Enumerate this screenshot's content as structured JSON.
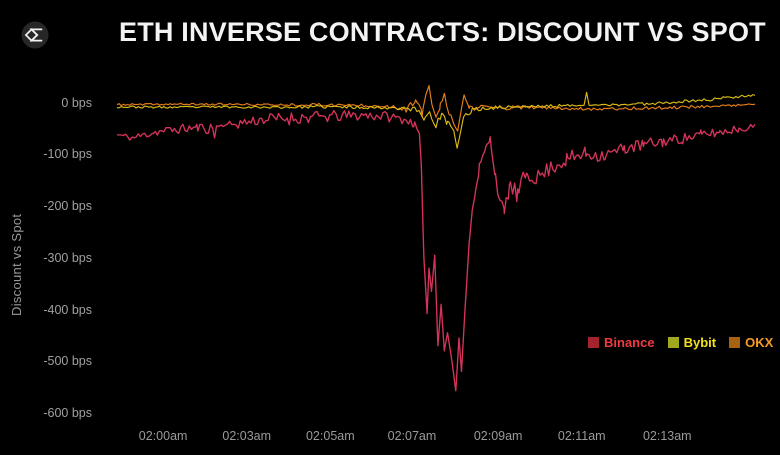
{
  "header": {
    "title": "ETH INVERSE CONTRACTS: DISCOUNT VS SPOT"
  },
  "colors": {
    "background": "#000000",
    "title": "#f4f4f4",
    "axis_text": "#9a9a9a",
    "binance": "#d6335a",
    "bybit": "#d9ba14",
    "okx": "#e67f18"
  },
  "chart_data": {
    "type": "line",
    "title": "ETH INVERSE CONTRACTS: DISCOUNT VS SPOT",
    "ylabel": "Discount vs Spot",
    "y_unit": "bps",
    "ylim": [
      40,
      -615
    ],
    "grid": false,
    "legend_position": "right-middle",
    "y_ticks": [
      {
        "label": "0 bps",
        "value": 0
      },
      {
        "label": "-100 bps",
        "value": -100
      },
      {
        "label": "-200 bps",
        "value": -200
      },
      {
        "label": "-300 bps",
        "value": -300
      },
      {
        "label": "-400 bps",
        "value": -400
      },
      {
        "label": "-500 bps",
        "value": -500
      },
      {
        "label": "-600 bps",
        "value": -600
      }
    ],
    "x_ticks": [
      {
        "label": "02:00am",
        "pos": 0.082
      },
      {
        "label": "02:03am",
        "pos": 0.211
      },
      {
        "label": "02:05am",
        "pos": 0.34
      },
      {
        "label": "02:07am",
        "pos": 0.466
      },
      {
        "label": "02:09am",
        "pos": 0.599
      },
      {
        "label": "02:11am",
        "pos": 0.728
      },
      {
        "label": "02:13am",
        "pos": 0.86
      }
    ],
    "legend": [
      {
        "label": "Binance",
        "text_color": "#f03c40",
        "swatch_color": "#a3242f"
      },
      {
        "label": "Bybit",
        "text_color": "#f2e01d",
        "swatch_color": "#a0a81e"
      },
      {
        "label": "OKX",
        "text_color": "#f79a23",
        "swatch_color": "#a86312"
      }
    ],
    "series_note": "anchors are [fraction_of_time_axis, value_bps, noise_amplitude_bps]; window spans ~01:59am-02:14am; Binance inverse contract crashes to about -557 bps near 02:08am while Bybit dips to ~-88 bps and OKX swings between +33 and -55 bps",
    "series": [
      {
        "name": "Binance",
        "color_key": "binance",
        "seed": 11,
        "width": 1.35,
        "anchors": [
          [
            0.0,
            -62,
            5
          ],
          [
            0.025,
            -68,
            7
          ],
          [
            0.055,
            -58,
            8
          ],
          [
            0.09,
            -52,
            9
          ],
          [
            0.125,
            -48,
            9
          ],
          [
            0.15,
            -50,
            12
          ],
          [
            0.153,
            -68,
            0
          ],
          [
            0.156,
            -45,
            0
          ],
          [
            0.19,
            -40,
            10
          ],
          [
            0.23,
            -32,
            11
          ],
          [
            0.27,
            -30,
            13
          ],
          [
            0.31,
            -28,
            12
          ],
          [
            0.35,
            -26,
            11
          ],
          [
            0.39,
            -24,
            10
          ],
          [
            0.42,
            -26,
            10
          ],
          [
            0.45,
            -32,
            9
          ],
          [
            0.465,
            -40,
            8
          ],
          [
            0.474,
            -60,
            0
          ],
          [
            0.477,
            -120,
            0
          ],
          [
            0.481,
            -300,
            0
          ],
          [
            0.486,
            -408,
            0
          ],
          [
            0.489,
            -320,
            0
          ],
          [
            0.493,
            -365,
            0
          ],
          [
            0.498,
            -295,
            0
          ],
          [
            0.503,
            -470,
            0
          ],
          [
            0.508,
            -390,
            0
          ],
          [
            0.513,
            -480,
            0
          ],
          [
            0.518,
            -445,
            0
          ],
          [
            0.525,
            -500,
            0
          ],
          [
            0.531,
            -557,
            0
          ],
          [
            0.536,
            -455,
            0
          ],
          [
            0.54,
            -520,
            0
          ],
          [
            0.546,
            -390,
            0
          ],
          [
            0.552,
            -270,
            0
          ],
          [
            0.558,
            -195,
            8
          ],
          [
            0.568,
            -125,
            10
          ],
          [
            0.578,
            -90,
            10
          ],
          [
            0.585,
            -70,
            8
          ],
          [
            0.592,
            -130,
            12
          ],
          [
            0.6,
            -190,
            12
          ],
          [
            0.607,
            -215,
            12
          ],
          [
            0.615,
            -160,
            18
          ],
          [
            0.628,
            -180,
            18
          ],
          [
            0.642,
            -135,
            18
          ],
          [
            0.66,
            -145,
            16
          ],
          [
            0.68,
            -125,
            15
          ],
          [
            0.705,
            -110,
            15
          ],
          [
            0.735,
            -98,
            14
          ],
          [
            0.765,
            -102,
            13
          ],
          [
            0.795,
            -88,
            12
          ],
          [
            0.825,
            -82,
            12
          ],
          [
            0.855,
            -75,
            11
          ],
          [
            0.885,
            -70,
            10
          ],
          [
            0.915,
            -62,
            10
          ],
          [
            0.945,
            -57,
            9
          ],
          [
            0.975,
            -50,
            8
          ],
          [
            1.0,
            -46,
            5
          ]
        ]
      },
      {
        "name": "OKX",
        "color_key": "okx",
        "seed": 37,
        "width": 1.15,
        "anchors": [
          [
            0.0,
            -4,
            2
          ],
          [
            0.08,
            -3,
            2
          ],
          [
            0.16,
            -3,
            2
          ],
          [
            0.24,
            -4,
            2
          ],
          [
            0.32,
            -4,
            3
          ],
          [
            0.39,
            -5,
            3
          ],
          [
            0.43,
            -7,
            4
          ],
          [
            0.455,
            -12,
            7
          ],
          [
            0.468,
            2,
            8
          ],
          [
            0.478,
            -22,
            9
          ],
          [
            0.484,
            15,
            0
          ],
          [
            0.489,
            33,
            0
          ],
          [
            0.494,
            -6,
            0
          ],
          [
            0.5,
            -28,
            0
          ],
          [
            0.506,
            -8,
            7
          ],
          [
            0.513,
            12,
            7
          ],
          [
            0.521,
            -18,
            7
          ],
          [
            0.528,
            -42,
            0
          ],
          [
            0.534,
            -55,
            0
          ],
          [
            0.539,
            -18,
            0
          ],
          [
            0.544,
            15,
            0
          ],
          [
            0.552,
            -12,
            6
          ],
          [
            0.568,
            -8,
            5
          ],
          [
            0.6,
            -10,
            4
          ],
          [
            0.65,
            -9,
            3
          ],
          [
            0.7,
            -11,
            3
          ],
          [
            0.75,
            -12,
            3
          ],
          [
            0.8,
            -11,
            3
          ],
          [
            0.85,
            -10,
            3
          ],
          [
            0.9,
            -8,
            3
          ],
          [
            0.95,
            -6,
            2
          ],
          [
            1.0,
            -3,
            2
          ]
        ]
      },
      {
        "name": "Bybit",
        "color_key": "bybit",
        "seed": 23,
        "width": 1.15,
        "anchors": [
          [
            0.0,
            -8,
            2
          ],
          [
            0.08,
            -9,
            2
          ],
          [
            0.16,
            -8,
            2
          ],
          [
            0.24,
            -9,
            2
          ],
          [
            0.32,
            -8,
            3
          ],
          [
            0.4,
            -9,
            3
          ],
          [
            0.45,
            -10,
            4
          ],
          [
            0.47,
            -14,
            6
          ],
          [
            0.481,
            -30,
            8
          ],
          [
            0.49,
            -18,
            8
          ],
          [
            0.5,
            -42,
            9
          ],
          [
            0.509,
            -24,
            8
          ],
          [
            0.518,
            -38,
            8
          ],
          [
            0.528,
            -55,
            0
          ],
          [
            0.533,
            -88,
            0
          ],
          [
            0.538,
            -60,
            0
          ],
          [
            0.543,
            -30,
            6
          ],
          [
            0.555,
            -15,
            5
          ],
          [
            0.58,
            -10,
            4
          ],
          [
            0.62,
            -8,
            3
          ],
          [
            0.66,
            -7,
            3
          ],
          [
            0.7,
            -6,
            3
          ],
          [
            0.732,
            -5,
            0
          ],
          [
            0.736,
            20,
            0
          ],
          [
            0.74,
            -5,
            0
          ],
          [
            0.78,
            -4,
            3
          ],
          [
            0.83,
            -2,
            3
          ],
          [
            0.88,
            2,
            3
          ],
          [
            0.93,
            6,
            3
          ],
          [
            0.97,
            12,
            3
          ],
          [
            1.0,
            15,
            2
          ]
        ]
      }
    ]
  }
}
